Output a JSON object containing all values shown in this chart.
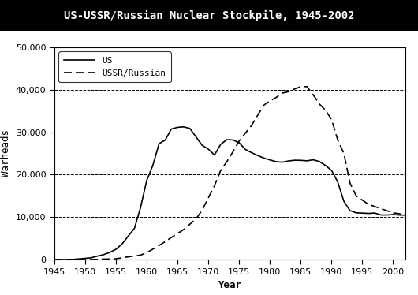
{
  "title": "US-USSR/Russian Nuclear Stockpile, 1945-2002",
  "xlabel": "Year",
  "ylabel": "Warheads",
  "xlim": [
    1945,
    2002
  ],
  "ylim": [
    0,
    50000
  ],
  "yticks": [
    0,
    10000,
    20000,
    30000,
    40000,
    50000
  ],
  "xticks": [
    1945,
    1950,
    1955,
    1960,
    1965,
    1970,
    1975,
    1980,
    1985,
    1990,
    1995,
    2000
  ],
  "us_data": {
    "years": [
      1945,
      1946,
      1947,
      1948,
      1949,
      1950,
      1951,
      1952,
      1953,
      1954,
      1955,
      1956,
      1957,
      1958,
      1959,
      1960,
      1961,
      1962,
      1963,
      1964,
      1965,
      1966,
      1967,
      1968,
      1969,
      1970,
      1971,
      1972,
      1973,
      1974,
      1975,
      1976,
      1977,
      1978,
      1979,
      1980,
      1981,
      1982,
      1983,
      1984,
      1985,
      1986,
      1987,
      1988,
      1989,
      1990,
      1991,
      1992,
      1993,
      1994,
      1995,
      1996,
      1997,
      1998,
      1999,
      2000,
      2001,
      2002
    ],
    "warheads": [
      2,
      9,
      13,
      50,
      170,
      299,
      438,
      832,
      1169,
      1703,
      2422,
      3692,
      5543,
      7345,
      12298,
      18638,
      22229,
      27297,
      28133,
      30751,
      31139,
      31255,
      30889,
      28884,
      26910,
      26008,
      24618,
      27128,
      28234,
      28170,
      27519,
      25956,
      25189,
      24516,
      23912,
      23462,
      23047,
      22937,
      23219,
      23387,
      23368,
      23252,
      23490,
      23110,
      22174,
      21004,
      18306,
      13731,
      11536,
      11012,
      10953,
      10870,
      10970,
      10507,
      10501,
      10615,
      10491,
      10468
    ]
  },
  "ussr_data": {
    "years": [
      1945,
      1946,
      1947,
      1948,
      1949,
      1950,
      1951,
      1952,
      1953,
      1954,
      1955,
      1956,
      1957,
      1958,
      1959,
      1960,
      1961,
      1962,
      1963,
      1964,
      1965,
      1966,
      1967,
      1968,
      1969,
      1970,
      1971,
      1972,
      1973,
      1974,
      1975,
      1976,
      1977,
      1978,
      1979,
      1980,
      1981,
      1982,
      1983,
      1984,
      1985,
      1986,
      1987,
      1988,
      1989,
      1990,
      1991,
      1992,
      1993,
      1994,
      1995,
      1996,
      1997,
      1998,
      1999,
      2000,
      2001,
      2002
    ],
    "warheads": [
      0,
      0,
      0,
      0,
      1,
      5,
      25,
      50,
      120,
      150,
      200,
      426,
      660,
      869,
      1060,
      1627,
      2471,
      3322,
      4238,
      5221,
      6129,
      7089,
      8339,
      9574,
      11649,
      14524,
      17413,
      20980,
      23044,
      25393,
      27935,
      29743,
      31543,
      33952,
      36338,
      37372,
      38157,
      39196,
      39517,
      40159,
      40723,
      40723,
      38859,
      36672,
      35200,
      33000,
      28200,
      25000,
      18000,
      15000,
      14000,
      13000,
      12500,
      12000,
      11500,
      11000,
      10800,
      10500
    ]
  },
  "us_color": "#000000",
  "ussr_color": "#000000",
  "background_color": "#ffffff",
  "title_bg_color": "#000000",
  "title_text_color": "#ffffff",
  "grid_color": "#000000",
  "grid_linestyle": "--",
  "grid_linewidth": 0.7,
  "line_width": 1.2,
  "title_fontsize": 10,
  "axis_label_fontsize": 9,
  "tick_fontsize": 8,
  "legend_fontsize": 8
}
